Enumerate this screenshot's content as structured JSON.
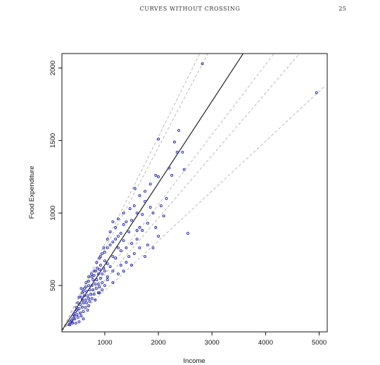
{
  "page": {
    "running_title": "CURVES WITHOUT CROSSING",
    "page_number": "25"
  },
  "chart_data": {
    "type": "scatter",
    "title": "",
    "xlabel": "Income",
    "ylabel": "Food Expenditure",
    "xlim": [
      200,
      5150
    ],
    "ylim": [
      180,
      2100
    ],
    "xticks": [
      1000,
      2000,
      3000,
      4000,
      5000
    ],
    "yticks": [
      500,
      1000,
      1500,
      2000
    ],
    "grid": false,
    "colors": {
      "points": "#1f1fb4",
      "fit_line": "#111111",
      "quantile_lines": "#b4b4b4",
      "axis": "#111111"
    },
    "fit_line": {
      "name": "",
      "style": "solid",
      "x": [
        200,
        3600
      ],
      "y": [
        190,
        2110
      ]
    },
    "quantile_lines": [
      {
        "style": "dashed",
        "x": [
          200,
          2800
        ],
        "y": [
          190,
          2120
        ]
      },
      {
        "style": "dashed",
        "x": [
          200,
          2950
        ],
        "y": [
          190,
          2120
        ]
      },
      {
        "style": "dashed",
        "x": [
          200,
          4200
        ],
        "y": [
          190,
          2120
        ]
      },
      {
        "style": "dashed",
        "x": [
          200,
          4680
        ],
        "y": [
          190,
          2120
        ]
      },
      {
        "style": "dashed",
        "x": [
          200,
          5120
        ],
        "y": [
          190,
          1880
        ]
      }
    ],
    "points": [
      [
        2820,
        2030
      ],
      [
        4950,
        1830
      ],
      [
        2380,
        1570
      ],
      [
        2000,
        1510
      ],
      [
        2300,
        1490
      ],
      [
        2450,
        1420
      ],
      [
        2200,
        1310
      ],
      [
        2480,
        1300
      ],
      [
        2000,
        1250
      ],
      [
        1560,
        1170
      ],
      [
        2050,
        1050
      ],
      [
        1750,
        1150
      ],
      [
        1650,
        1120
      ],
      [
        1850,
        1040
      ],
      [
        1550,
        1050
      ],
      [
        1470,
        1030
      ],
      [
        1900,
        1000
      ],
      [
        1700,
        990
      ],
      [
        2100,
        980
      ],
      [
        1500,
        950
      ],
      [
        1400,
        940
      ],
      [
        1800,
        930
      ],
      [
        1650,
        900
      ],
      [
        1600,
        880
      ],
      [
        2550,
        860
      ],
      [
        1450,
        870
      ],
      [
        1300,
        860
      ],
      [
        1250,
        840
      ],
      [
        1200,
        820
      ],
      [
        1350,
        810
      ],
      [
        1150,
        800
      ],
      [
        1500,
        790
      ],
      [
        1400,
        760
      ],
      [
        1100,
        780
      ],
      [
        1050,
        760
      ],
      [
        1300,
        740
      ],
      [
        1000,
        730
      ],
      [
        1150,
        700
      ],
      [
        950,
        720
      ],
      [
        1200,
        690
      ],
      [
        900,
        690
      ],
      [
        1000,
        670
      ],
      [
        1050,
        650
      ],
      [
        920,
        640
      ],
      [
        850,
        660
      ],
      [
        1100,
        630
      ],
      [
        980,
        620
      ],
      [
        900,
        610
      ],
      [
        830,
        600
      ],
      [
        1000,
        600
      ],
      [
        950,
        580
      ],
      [
        880,
        580
      ],
      [
        800,
        570
      ],
      [
        760,
        560
      ],
      [
        1050,
        560
      ],
      [
        920,
        550
      ],
      [
        850,
        540
      ],
      [
        780,
        540
      ],
      [
        700,
        530
      ],
      [
        950,
        520
      ],
      [
        880,
        510
      ],
      [
        820,
        510
      ],
      [
        760,
        500
      ],
      [
        700,
        500
      ],
      [
        650,
        490
      ],
      [
        900,
        490
      ],
      [
        840,
        480
      ],
      [
        780,
        470
      ],
      [
        720,
        470
      ],
      [
        660,
        460
      ],
      [
        600,
        460
      ],
      [
        880,
        450
      ],
      [
        800,
        440
      ],
      [
        740,
        440
      ],
      [
        680,
        430
      ],
      [
        620,
        430
      ],
      [
        560,
        420
      ],
      [
        760,
        410
      ],
      [
        700,
        410
      ],
      [
        640,
        400
      ],
      [
        580,
        400
      ],
      [
        820,
        400
      ],
      [
        720,
        390
      ],
      [
        660,
        380
      ],
      [
        600,
        380
      ],
      [
        540,
        370
      ],
      [
        700,
        360
      ],
      [
        640,
        350
      ],
      [
        580,
        350
      ],
      [
        520,
        340
      ],
      [
        480,
        330
      ],
      [
        680,
        330
      ],
      [
        600,
        320
      ],
      [
        540,
        310
      ],
      [
        480,
        300
      ],
      [
        420,
        300
      ],
      [
        560,
        290
      ],
      [
        500,
        280
      ],
      [
        440,
        270
      ],
      [
        380,
        260
      ],
      [
        600,
        270
      ],
      [
        520,
        250
      ],
      [
        460,
        240
      ],
      [
        400,
        240
      ],
      [
        350,
        230
      ],
      [
        1100,
        870
      ],
      [
        1200,
        900
      ],
      [
        1350,
        920
      ],
      [
        1250,
        760
      ],
      [
        1450,
        700
      ],
      [
        1600,
        820
      ],
      [
        1700,
        880
      ],
      [
        1800,
        780
      ],
      [
        1550,
        720
      ],
      [
        1400,
        660
      ],
      [
        1300,
        640
      ],
      [
        1150,
        600
      ],
      [
        1250,
        580
      ],
      [
        1050,
        540
      ],
      [
        1000,
        500
      ],
      [
        950,
        470
      ],
      [
        900,
        450
      ],
      [
        1150,
        520
      ],
      [
        1350,
        600
      ],
      [
        1500,
        640
      ],
      [
        1650,
        760
      ],
      [
        1750,
        700
      ],
      [
        1900,
        760
      ],
      [
        2000,
        840
      ],
      [
        1950,
        900
      ],
      [
        2150,
        1100
      ],
      [
        1600,
        1000
      ],
      [
        1350,
        1000
      ],
      [
        1250,
        960
      ],
      [
        1150,
        940
      ],
      [
        1050,
        820
      ],
      [
        980,
        760
      ],
      [
        920,
        700
      ],
      [
        860,
        620
      ],
      [
        800,
        600
      ],
      [
        750,
        580
      ],
      [
        700,
        560
      ],
      [
        650,
        520
      ],
      [
        620,
        480
      ],
      [
        580,
        450
      ],
      [
        560,
        480
      ],
      [
        520,
        420
      ],
      [
        500,
        380
      ],
      [
        470,
        350
      ],
      [
        450,
        320
      ],
      [
        430,
        290
      ],
      [
        410,
        270
      ],
      [
        390,
        250
      ],
      [
        360,
        250
      ],
      [
        330,
        230
      ],
      [
        1750,
        1080
      ],
      [
        1850,
        1200
      ],
      [
        1950,
        1260
      ],
      [
        2250,
        1260
      ],
      [
        2350,
        1420
      ]
    ]
  }
}
